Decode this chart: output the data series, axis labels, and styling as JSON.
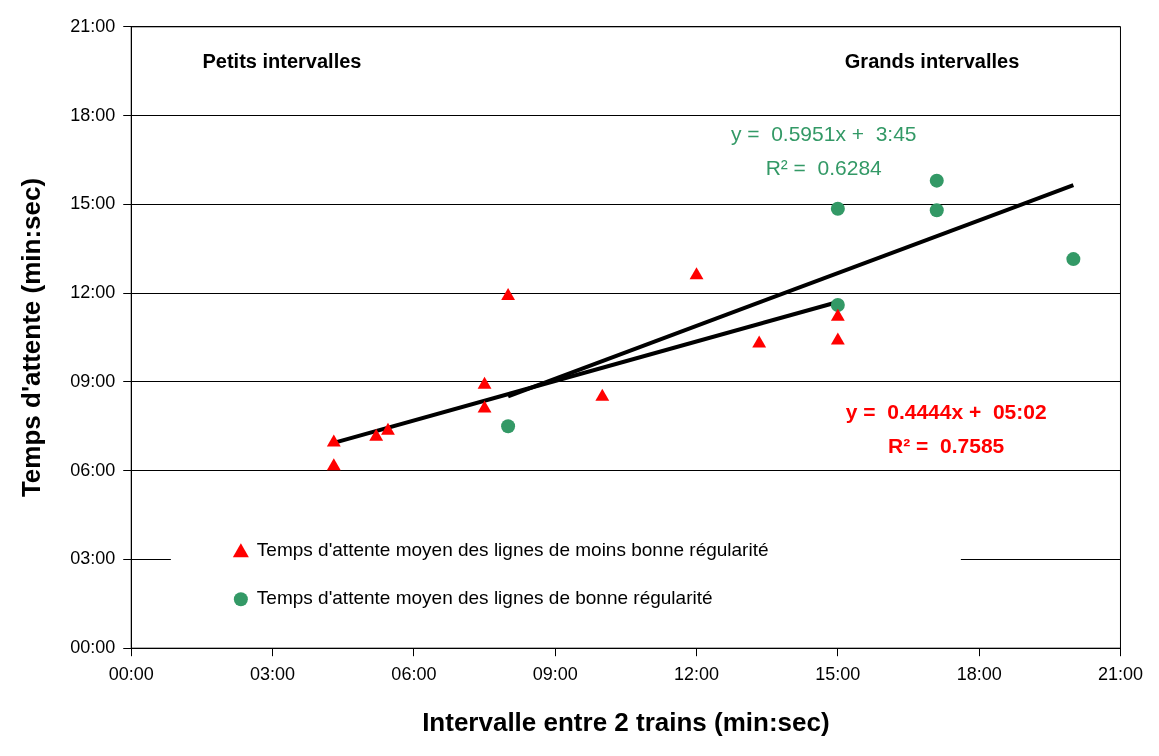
{
  "chart_data": {
    "type": "scatter",
    "xlabel": "Intervalle entre 2 trains (min:sec)",
    "ylabel": "Temps d'attente (min:sec)",
    "xlim": [
      0,
      21
    ],
    "ylim": [
      0,
      21
    ],
    "xticks": [
      {
        "value": 0,
        "label": "00:00"
      },
      {
        "value": 3,
        "label": "03:00"
      },
      {
        "value": 6,
        "label": "06:00"
      },
      {
        "value": 9,
        "label": "09:00"
      },
      {
        "value": 12,
        "label": "12:00"
      },
      {
        "value": 15,
        "label": "15:00"
      },
      {
        "value": 18,
        "label": "18:00"
      },
      {
        "value": 21,
        "label": "21:00"
      }
    ],
    "yticks": [
      {
        "value": 0,
        "label": "00:00"
      },
      {
        "value": 3,
        "label": "03:00"
      },
      {
        "value": 6,
        "label": "06:00"
      },
      {
        "value": 9,
        "label": "09:00"
      },
      {
        "value": 12,
        "label": "12:00"
      },
      {
        "value": 15,
        "label": "15:00"
      },
      {
        "value": 18,
        "label": "18:00"
      },
      {
        "value": 21,
        "label": "21:00"
      }
    ],
    "grid": "y",
    "legend": "bottom",
    "series": [
      {
        "name": "Temps d'attente moyen des lignes de moins bonne régularité",
        "type": "scatter",
        "marker": "triangle",
        "color": "#ff0000",
        "x": [
          4.3,
          4.3,
          5.2,
          5.45,
          7.5,
          7.5,
          8.0,
          10.0,
          12.0,
          13.33,
          15.0,
          15.0
        ],
        "values": [
          6.95,
          6.15,
          7.15,
          7.35,
          8.9,
          8.1,
          11.9,
          8.5,
          12.6,
          10.3,
          11.2,
          10.4
        ]
      },
      {
        "name": "Temps d'attente moyen des lignes de bonne régularité",
        "type": "scatter",
        "marker": "circle",
        "color": "#339966",
        "x": [
          8.0,
          15.0,
          15.0,
          17.1,
          17.1,
          20.0
        ],
        "values": [
          7.5,
          11.6,
          14.85,
          14.8,
          15.8,
          13.15
        ]
      },
      {
        "type": "line",
        "marker": "none",
        "color": "#000000",
        "x": [
          4.3,
          15.0
        ],
        "values": [
          6.94,
          11.7
        ]
      },
      {
        "type": "line",
        "marker": "none",
        "color": "#000000",
        "x": [
          8.0,
          20.0
        ],
        "values": [
          8.51,
          15.65
        ]
      }
    ],
    "annotations": [
      "Petits intervalles",
      "Grands intervalles",
      "y =  0.5951x +  3:45",
      "R² =  0.6284",
      "y =  0.4444x +  05:02",
      "R² =  0.7585"
    ]
  }
}
